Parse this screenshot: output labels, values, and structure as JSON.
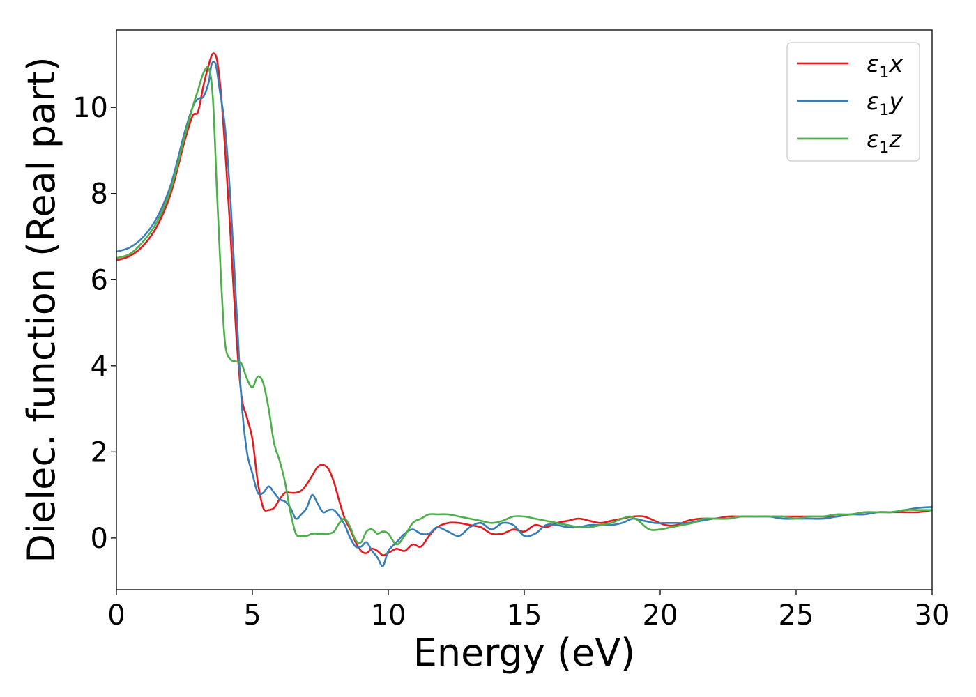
{
  "chart_data": {
    "type": "line",
    "title": "",
    "xlabel": "Energy (eV)",
    "ylabel": "Dielec. function (Real part)",
    "xlim": [
      0,
      30
    ],
    "ylim": [
      -1.2,
      11.8
    ],
    "xticks": [
      0,
      5,
      10,
      15,
      20,
      25,
      30
    ],
    "xtick_labels": [
      "0",
      "5",
      "10",
      "15",
      "20",
      "25",
      "30"
    ],
    "yticks": [
      0,
      2,
      4,
      6,
      8,
      10
    ],
    "ytick_labels": [
      "0",
      "2",
      "4",
      "6",
      "8",
      "10"
    ],
    "grid": false,
    "legend_position": "top-right",
    "series": [
      {
        "name": "ε1x",
        "legend_base": "ε",
        "legend_sub": "1",
        "legend_var": "x",
        "color": "#e41a1c",
        "x": [
          0,
          0.5,
          1.0,
          1.5,
          2.0,
          2.5,
          2.8,
          3.0,
          3.2,
          3.4,
          3.55,
          3.7,
          3.85,
          4.0,
          4.2,
          4.4,
          4.6,
          4.8,
          5.0,
          5.2,
          5.4,
          5.6,
          5.8,
          6.0,
          6.2,
          6.4,
          6.6,
          6.8,
          7.0,
          7.2,
          7.4,
          7.6,
          7.8,
          8.0,
          8.2,
          8.4,
          8.6,
          8.8,
          9.0,
          9.2,
          9.4,
          9.6,
          9.8,
          10.0,
          10.3,
          10.6,
          10.9,
          11.2,
          11.5,
          11.8,
          12.2,
          12.6,
          13.0,
          13.4,
          13.8,
          14.2,
          14.6,
          15.0,
          15.4,
          15.8,
          16.2,
          16.6,
          17.0,
          17.4,
          17.8,
          18.2,
          18.6,
          19.0,
          19.4,
          19.8,
          20.2,
          20.6,
          21.0,
          21.5,
          22.0,
          22.5,
          23.0,
          23.5,
          24.0,
          24.5,
          25.0,
          25.5,
          26.0,
          26.5,
          27.0,
          27.5,
          28.0,
          28.5,
          29.0,
          29.5,
          30.0
        ],
        "y": [
          6.45,
          6.55,
          6.8,
          7.25,
          8.0,
          9.2,
          9.8,
          9.9,
          10.5,
          11.0,
          11.25,
          11.1,
          10.3,
          9.0,
          7.0,
          4.8,
          3.3,
          2.8,
          2.3,
          1.3,
          0.7,
          0.65,
          0.7,
          0.9,
          1.05,
          1.05,
          1.05,
          1.1,
          1.25,
          1.45,
          1.65,
          1.7,
          1.6,
          1.3,
          0.85,
          0.45,
          0.2,
          -0.1,
          -0.3,
          -0.35,
          -0.25,
          -0.3,
          -0.4,
          -0.35,
          -0.25,
          -0.3,
          -0.15,
          -0.2,
          0.05,
          0.25,
          0.35,
          0.35,
          0.3,
          0.25,
          0.1,
          0.1,
          0.2,
          0.15,
          0.3,
          0.25,
          0.35,
          0.4,
          0.45,
          0.4,
          0.35,
          0.4,
          0.45,
          0.5,
          0.5,
          0.4,
          0.3,
          0.3,
          0.4,
          0.45,
          0.45,
          0.5,
          0.5,
          0.5,
          0.5,
          0.5,
          0.5,
          0.5,
          0.5,
          0.5,
          0.55,
          0.55,
          0.6,
          0.6,
          0.6,
          0.6,
          0.65
        ]
      },
      {
        "name": "ε1y",
        "legend_base": "ε",
        "legend_sub": "1",
        "legend_var": "y",
        "color": "#377eb8",
        "x": [
          0,
          0.5,
          1.0,
          1.5,
          2.0,
          2.5,
          2.8,
          3.0,
          3.2,
          3.4,
          3.5,
          3.65,
          3.8,
          4.0,
          4.2,
          4.4,
          4.6,
          4.8,
          5.0,
          5.2,
          5.4,
          5.6,
          5.8,
          6.0,
          6.2,
          6.4,
          6.6,
          6.8,
          7.0,
          7.2,
          7.4,
          7.6,
          7.8,
          8.0,
          8.2,
          8.4,
          8.6,
          8.8,
          9.0,
          9.2,
          9.4,
          9.6,
          9.8,
          10.0,
          10.3,
          10.6,
          10.9,
          11.2,
          11.5,
          11.8,
          12.2,
          12.6,
          13.0,
          13.4,
          13.8,
          14.2,
          14.6,
          15.0,
          15.4,
          15.8,
          16.2,
          16.6,
          17.0,
          17.4,
          17.8,
          18.2,
          18.6,
          19.0,
          19.4,
          19.8,
          20.2,
          20.6,
          21.0,
          21.5,
          22.0,
          22.5,
          23.0,
          23.5,
          24.0,
          24.5,
          25.0,
          25.5,
          26.0,
          26.5,
          27.0,
          27.5,
          28.0,
          28.5,
          29.0,
          29.5,
          30.0
        ],
        "y": [
          6.65,
          6.75,
          7.0,
          7.45,
          8.2,
          9.4,
          10.0,
          10.2,
          10.25,
          10.6,
          11.0,
          11.0,
          10.4,
          9.5,
          7.8,
          5.5,
          3.2,
          2.0,
          1.5,
          1.05,
          1.05,
          1.2,
          1.05,
          0.9,
          0.85,
          0.7,
          0.45,
          0.55,
          0.7,
          1.0,
          0.8,
          0.6,
          0.65,
          0.65,
          0.5,
          0.3,
          0.0,
          -0.2,
          -0.2,
          -0.1,
          -0.3,
          -0.45,
          -0.65,
          -0.3,
          -0.1,
          0.1,
          0.2,
          0.1,
          0.1,
          0.25,
          0.15,
          0.05,
          0.25,
          0.35,
          0.2,
          0.35,
          0.3,
          0.05,
          0.1,
          0.3,
          0.3,
          0.25,
          0.25,
          0.3,
          0.3,
          0.3,
          0.35,
          0.45,
          0.4,
          0.35,
          0.35,
          0.35,
          0.35,
          0.4,
          0.45,
          0.45,
          0.5,
          0.5,
          0.5,
          0.45,
          0.45,
          0.45,
          0.45,
          0.5,
          0.55,
          0.55,
          0.6,
          0.6,
          0.65,
          0.7,
          0.72
        ]
      },
      {
        "name": "ε1z",
        "legend_base": "ε",
        "legend_sub": "1",
        "legend_var": "z",
        "color": "#4daf4a",
        "x": [
          0,
          0.5,
          1.0,
          1.5,
          2.0,
          2.5,
          2.8,
          3.0,
          3.2,
          3.4,
          3.55,
          3.7,
          3.85,
          4.0,
          4.2,
          4.4,
          4.6,
          4.8,
          5.0,
          5.2,
          5.4,
          5.6,
          5.8,
          6.0,
          6.2,
          6.4,
          6.6,
          6.8,
          7.0,
          7.2,
          7.4,
          7.6,
          7.8,
          8.0,
          8.2,
          8.4,
          8.6,
          8.8,
          9.0,
          9.2,
          9.4,
          9.6,
          9.8,
          10.0,
          10.3,
          10.6,
          10.9,
          11.2,
          11.5,
          11.8,
          12.2,
          12.6,
          13.0,
          13.4,
          13.8,
          14.2,
          14.6,
          15.0,
          15.4,
          15.8,
          16.2,
          16.6,
          17.0,
          17.4,
          17.8,
          18.2,
          18.6,
          18.9,
          19.2,
          19.6,
          20.0,
          20.4,
          20.8,
          21.2,
          21.6,
          22.0,
          22.5,
          23.0,
          23.5,
          24.0,
          24.5,
          25.0,
          25.5,
          26.0,
          26.5,
          27.0,
          27.5,
          28.0,
          28.5,
          29.0,
          29.5,
          30.0
        ],
        "y": [
          6.5,
          6.6,
          6.9,
          7.35,
          8.1,
          9.3,
          10.0,
          10.4,
          10.8,
          10.9,
          10.2,
          8.0,
          6.0,
          4.5,
          4.15,
          4.1,
          4.05,
          3.7,
          3.5,
          3.75,
          3.6,
          3.0,
          2.2,
          1.8,
          1.3,
          0.6,
          0.1,
          0.05,
          0.05,
          0.1,
          0.1,
          0.1,
          0.1,
          0.15,
          0.35,
          0.45,
          0.25,
          -0.05,
          -0.1,
          0.15,
          0.2,
          0.1,
          0.15,
          0.1,
          -0.15,
          0.05,
          0.35,
          0.45,
          0.55,
          0.55,
          0.55,
          0.5,
          0.45,
          0.4,
          0.35,
          0.4,
          0.5,
          0.5,
          0.45,
          0.4,
          0.35,
          0.3,
          0.25,
          0.25,
          0.3,
          0.35,
          0.45,
          0.5,
          0.4,
          0.2,
          0.2,
          0.25,
          0.3,
          0.35,
          0.45,
          0.45,
          0.45,
          0.5,
          0.5,
          0.5,
          0.5,
          0.45,
          0.5,
          0.5,
          0.55,
          0.55,
          0.6,
          0.6,
          0.6,
          0.65,
          0.65,
          0.65
        ]
      }
    ]
  }
}
